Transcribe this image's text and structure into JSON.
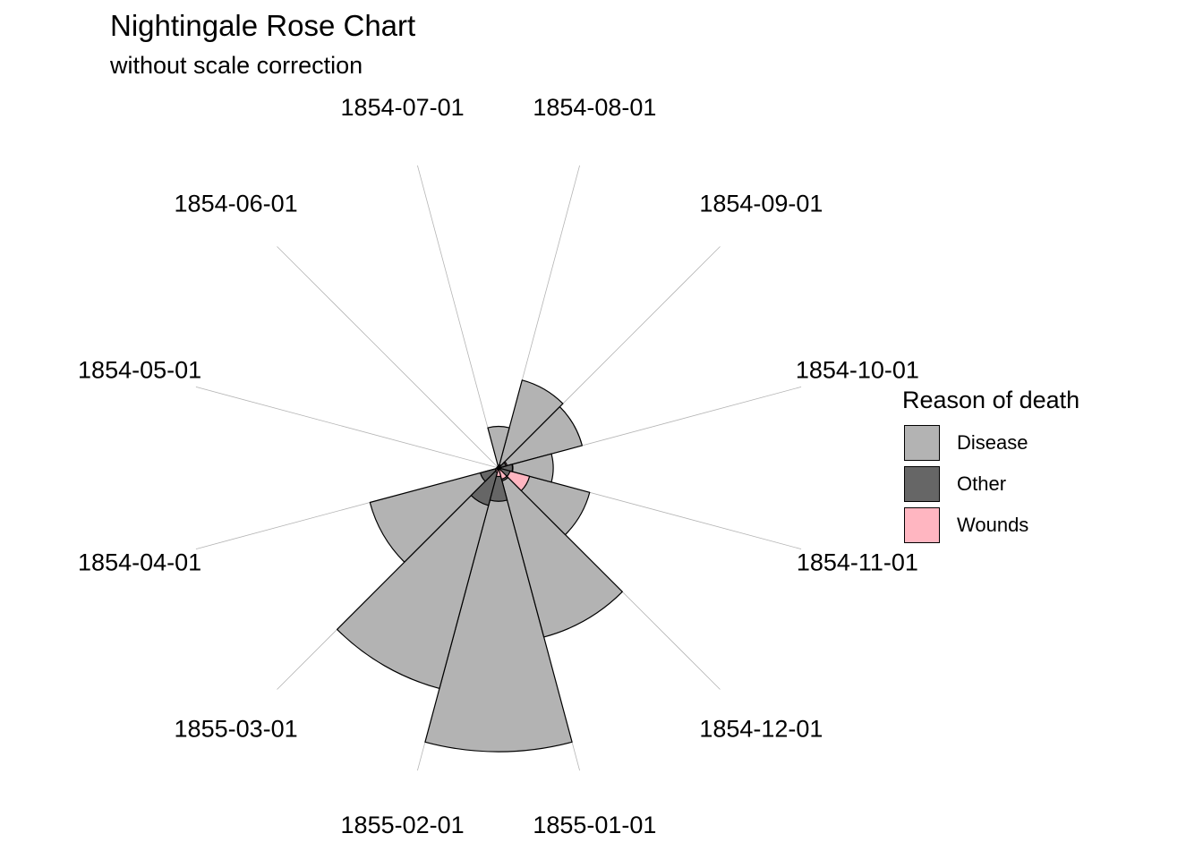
{
  "title": "Nightingale Rose Chart",
  "subtitle": "without scale correction",
  "legend": {
    "title": "Reason of death",
    "items": [
      {
        "label": "Disease",
        "color": "#b3b3b3"
      },
      {
        "label": "Other",
        "color": "#666666"
      },
      {
        "label": "Wounds",
        "color": "#ffb6c1"
      }
    ]
  },
  "chart_data": {
    "type": "rose",
    "title": "Nightingale Rose Chart",
    "subtitle": "without scale correction",
    "categories": [
      "1854-04-01",
      "1854-05-01",
      "1854-06-01",
      "1854-07-01",
      "1854-08-01",
      "1854-09-01",
      "1854-10-01",
      "1854-11-01",
      "1854-12-01",
      "1855-01-01",
      "1855-02-01",
      "1855-03-01"
    ],
    "series": [
      {
        "name": "Disease",
        "color": "#b3b3b3",
        "values": [
          1.4,
          6.2,
          4.7,
          150,
          328,
          312,
          197,
          340,
          631,
          1023,
          823,
          480
        ]
      },
      {
        "name": "Other",
        "color": "#666666",
        "values": [
          7,
          4.6,
          2.5,
          9.6,
          11.9,
          27.7,
          50.1,
          42.8,
          48,
          120,
          140,
          68
        ]
      },
      {
        "name": "Wounds",
        "color": "#ffb6c1",
        "values": [
          0,
          0,
          0,
          0,
          0.4,
          32.1,
          51.7,
          115.8,
          41.7,
          30.7,
          16.3,
          12.8
        ]
      }
    ],
    "grid": true,
    "legend_position": "right"
  }
}
